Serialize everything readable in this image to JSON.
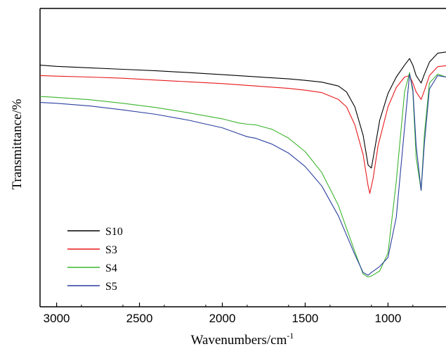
{
  "chart_data": {
    "type": "line",
    "title": "",
    "xlabel": "Wavenumbers/cm",
    "xlabel_superscript": "-1",
    "ylabel": "Transmittance/%",
    "xlim": [
      3100,
      650
    ],
    "x_reversed": true,
    "ylim": [
      0,
      100
    ],
    "y_ticks_labeled": false,
    "x_ticks": [
      3000,
      2500,
      2000,
      1500,
      1000
    ],
    "x_tick_labels": [
      "3000",
      "2500",
      "2000",
      "1500",
      "1000"
    ],
    "grid": false,
    "legend_position": "bottom-left",
    "series": [
      {
        "name": "S10",
        "color": "#000000",
        "x": [
          3100,
          3000,
          2800,
          2600,
          2400,
          2200,
          2000,
          1800,
          1600,
          1500,
          1400,
          1300,
          1250,
          1200,
          1150,
          1120,
          1100,
          1080,
          1050,
          1000,
          950,
          900,
          870,
          850,
          830,
          800,
          780,
          750,
          700,
          650
        ],
        "y": [
          81.0,
          80.6,
          80.1,
          79.6,
          79.1,
          78.5,
          77.8,
          77.1,
          76.4,
          75.9,
          75.3,
          74.0,
          72.0,
          67.0,
          57.5,
          47.5,
          46.5,
          53.0,
          62.5,
          71.5,
          77.0,
          81.0,
          83.2,
          81.0,
          77.5,
          75.0,
          78.0,
          82.0,
          85.0,
          85.4
        ]
      },
      {
        "name": "S3",
        "color": "#e8191b",
        "x": [
          3100,
          3000,
          2800,
          2600,
          2400,
          2200,
          2000,
          1800,
          1600,
          1500,
          1400,
          1300,
          1250,
          1200,
          1150,
          1120,
          1110,
          1090,
          1060,
          1000,
          950,
          900,
          870,
          850,
          830,
          800,
          780,
          750,
          700,
          650
        ],
        "y": [
          77.5,
          77.3,
          77.0,
          76.6,
          76.0,
          75.4,
          74.8,
          74.0,
          73.2,
          72.6,
          71.8,
          69.5,
          67.0,
          61.0,
          51.0,
          40.5,
          38.0,
          43.0,
          54.0,
          67.0,
          73.5,
          77.0,
          77.5,
          75.0,
          72.0,
          69.5,
          72.5,
          77.5,
          80.5,
          80.8
        ]
      },
      {
        "name": "S4",
        "color": "#3cb52e",
        "x": [
          3100,
          3000,
          2800,
          2600,
          2400,
          2200,
          2000,
          1900,
          1850,
          1800,
          1700,
          1600,
          1500,
          1400,
          1300,
          1200,
          1150,
          1120,
          1100,
          1050,
          1000,
          950,
          900,
          870,
          850,
          830,
          800,
          780,
          750,
          700,
          650
        ],
        "y": [
          70.5,
          70.2,
          69.4,
          68.2,
          66.8,
          65.0,
          63.0,
          61.6,
          61.2,
          61.0,
          59.5,
          56.5,
          52.0,
          45.0,
          34.0,
          18.5,
          11.0,
          10.0,
          10.3,
          12.0,
          18.0,
          42.0,
          72.0,
          78.5,
          72.0,
          50.0,
          39.0,
          58.0,
          75.0,
          78.0,
          77.0
        ]
      },
      {
        "name": "S5",
        "color": "#2b3f9f",
        "x": [
          3100,
          3000,
          2800,
          2600,
          2400,
          2200,
          2000,
          1900,
          1850,
          1800,
          1700,
          1600,
          1500,
          1400,
          1300,
          1200,
          1150,
          1120,
          1100,
          1050,
          1000,
          950,
          900,
          870,
          850,
          830,
          800,
          780,
          750,
          700,
          650
        ],
        "y": [
          68.5,
          68.2,
          67.3,
          66.0,
          64.5,
          62.5,
          60.0,
          58.0,
          57.0,
          56.5,
          54.5,
          51.5,
          47.0,
          40.5,
          30.5,
          17.5,
          11.5,
          10.6,
          11.5,
          13.5,
          16.5,
          30.0,
          60.0,
          78.0,
          73.0,
          54.0,
          39.0,
          55.0,
          73.0,
          77.5,
          77.0
        ]
      }
    ]
  }
}
